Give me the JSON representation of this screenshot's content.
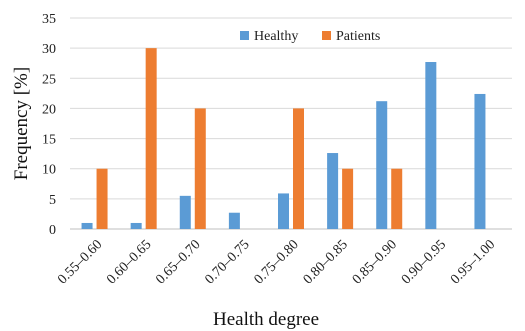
{
  "chart_data": {
    "type": "bar",
    "title": "",
    "xlabel": "Health degree",
    "ylabel": "Frequency [%]",
    "ylim": [
      0,
      35
    ],
    "yticks": [
      0,
      5,
      10,
      15,
      20,
      25,
      30,
      35
    ],
    "grid": "horizontal",
    "legend_position": "top-right",
    "categories": [
      "0.55–0.60",
      "0.60–0.65",
      "0.65–0.70",
      "0.70–0.75",
      "0.75–0.80",
      "0.80–0.85",
      "0.85–0.90",
      "0.90–0.95",
      "0.95–1.00"
    ],
    "series": [
      {
        "name": "Healthy",
        "color": "#5b9bd5",
        "values": [
          1.0,
          1.0,
          5.5,
          2.7,
          5.9,
          12.6,
          21.2,
          27.7,
          22.4
        ]
      },
      {
        "name": "Patients",
        "color": "#ed7d31",
        "values": [
          10,
          30,
          20,
          0,
          20,
          10,
          10,
          0,
          0
        ]
      }
    ]
  }
}
